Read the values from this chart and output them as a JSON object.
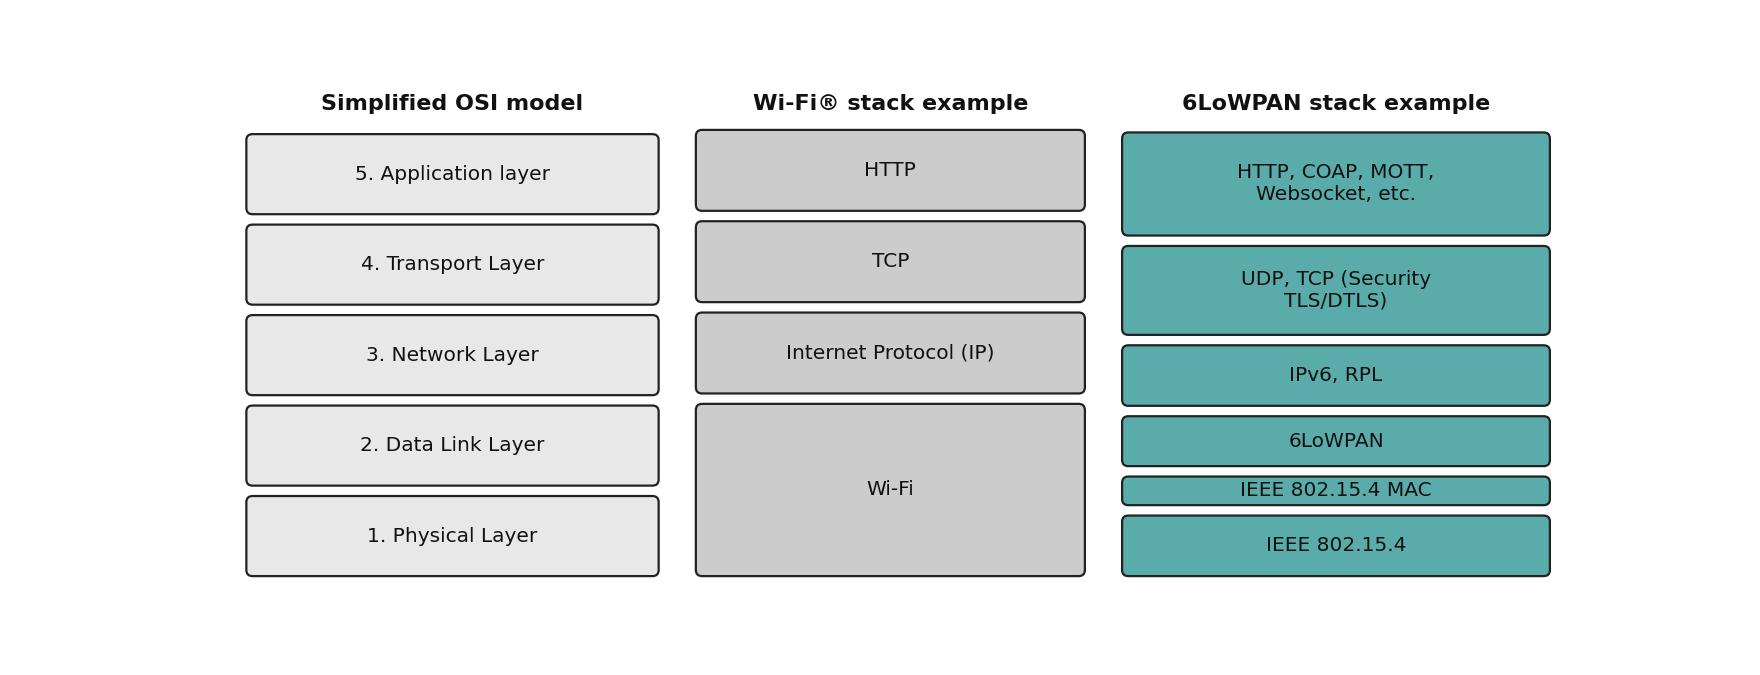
{
  "fig_bg": "#ffffff",
  "col1_title": "Simplified OSI model",
  "col2_title_parts": [
    "Wi-Fi",
    "®",
    " stack example"
  ],
  "col3_title": "6LoWPAN stack example",
  "col1_color": "#e8e8e8",
  "col2_color": "#cccccc",
  "col3_color": "#5aacaa",
  "border_color": "#222222",
  "text_color": "#111111",
  "col1_layers": [
    "5. Application layer",
    "4. Transport Layer",
    "3. Network Layer",
    "2. Data Link Layer",
    "1. Physical Layer"
  ],
  "col2_layers": [
    {
      "text": "HTTP",
      "span": 1
    },
    {
      "text": "TCP",
      "span": 1
    },
    {
      "text": "Internet Protocol (IP)",
      "span": 1
    },
    {
      "text": "Wi-Fi",
      "span": 2
    }
  ],
  "col2_spans": [
    1,
    1,
    1,
    2
  ],
  "col3_layers": [
    {
      "text": "HTTP, COAP, MOTT,\nWebsocket, etc.",
      "span": 1.6
    },
    {
      "text": "UDP, TCP (Security\nTLS/DTLS)",
      "span": 1.4
    },
    {
      "text": "IPv6, RPL",
      "span": 1.0
    },
    {
      "text": "6LoWPAN",
      "span": 0.85
    },
    {
      "text": "IEEE 802.15.4 MAC",
      "span": 0.55
    },
    {
      "text": "IEEE 802.15.4",
      "span": 1.0
    }
  ],
  "title_fontsize": 16,
  "label_fontsize": 14.5
}
